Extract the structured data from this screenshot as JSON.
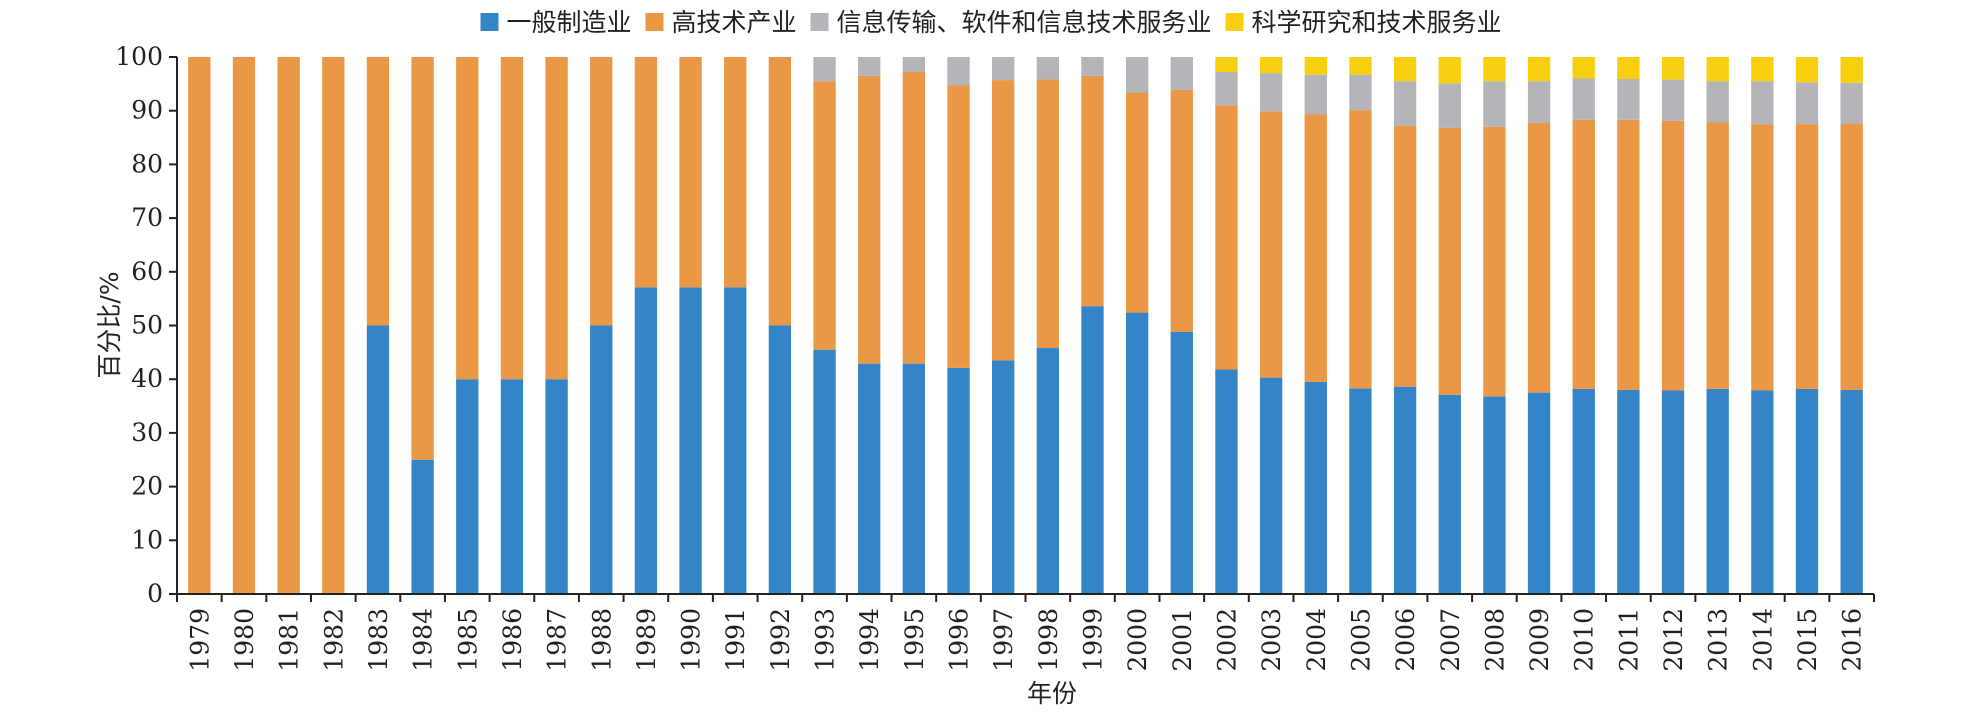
{
  "chart_data": {
    "type": "bar",
    "stacked": true,
    "xlabel": "年份",
    "ylabel": "百分比/%",
    "ylim": [
      0,
      100
    ],
    "yticks": [
      0,
      10,
      20,
      30,
      40,
      50,
      60,
      70,
      80,
      90,
      100
    ],
    "grid": false,
    "legend_position": "top",
    "categories": [
      "1979",
      "1980",
      "1981",
      "1982",
      "1983",
      "1984",
      "1985",
      "1986",
      "1987",
      "1988",
      "1989",
      "1990",
      "1991",
      "1992",
      "1993",
      "1994",
      "1995",
      "1996",
      "1997",
      "1998",
      "1999",
      "2000",
      "2001",
      "2002",
      "2003",
      "2004",
      "2005",
      "2006",
      "2007",
      "2008",
      "2009",
      "2010",
      "2011",
      "2012",
      "2013",
      "2014",
      "2015",
      "2016"
    ],
    "series": [
      {
        "name": "一般制造业",
        "color": "#3484c8",
        "values": [
          0,
          0,
          0,
          0,
          50,
          25,
          40,
          40,
          40,
          50,
          57.1,
          57.1,
          57.1,
          50,
          45.5,
          42.9,
          42.9,
          42.1,
          43.5,
          45.8,
          53.6,
          52.4,
          48.8,
          41.8,
          40.3,
          39.5,
          38.3,
          38.6,
          37.1,
          36.8,
          37.5,
          38.2,
          38,
          37.9,
          38.2,
          37.9,
          38.2,
          38
        ]
      },
      {
        "name": "高技术产业",
        "color": "#ea9746",
        "values": [
          100,
          100,
          100,
          100,
          50,
          75,
          60,
          60,
          60,
          50,
          42.9,
          42.9,
          42.9,
          50,
          50,
          53.6,
          54.3,
          52.6,
          52.2,
          50,
          42.9,
          41,
          45.1,
          49.2,
          49.6,
          49.8,
          51.8,
          48.6,
          49.7,
          50.2,
          50.2,
          50.1,
          50.3,
          50.2,
          49.6,
          49.6,
          49.3,
          49.6
        ]
      },
      {
        "name": "信息传输、软件和信息技术服务业",
        "color": "#b4b5b9",
        "values": [
          0,
          0,
          0,
          0,
          0,
          0,
          0,
          0,
          0,
          0,
          0,
          0,
          0,
          0,
          4.5,
          3.5,
          2.8,
          5.3,
          4.3,
          4.2,
          3.5,
          6.6,
          6.1,
          6.2,
          7.1,
          7.4,
          6.6,
          8.3,
          8.3,
          8.5,
          7.8,
          7.7,
          7.6,
          7.7,
          7.7,
          8,
          7.8,
          7.6
        ]
      },
      {
        "name": "科学研究和技术服务业",
        "color": "#f8cf0e",
        "values": [
          0,
          0,
          0,
          0,
          0,
          0,
          0,
          0,
          0,
          0,
          0,
          0,
          0,
          0,
          0,
          0,
          0,
          0,
          0,
          0,
          0,
          0,
          0,
          2.8,
          3,
          3.3,
          3.3,
          4.5,
          4.9,
          4.5,
          4.5,
          4,
          4.1,
          4.2,
          4.5,
          4.5,
          4.7,
          4.8
        ]
      }
    ]
  }
}
